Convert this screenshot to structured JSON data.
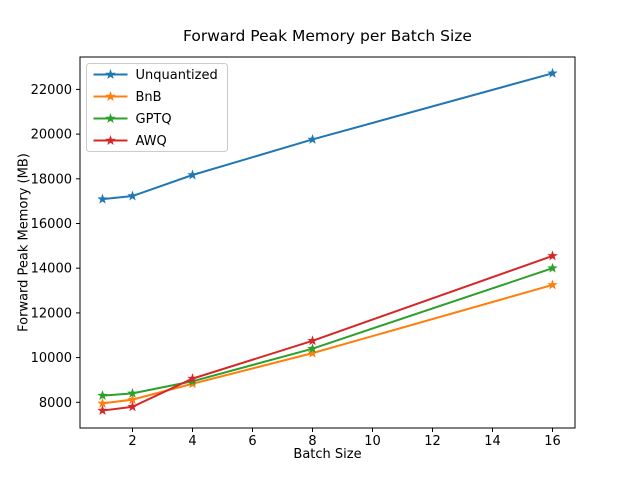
{
  "figure": {
    "background": "#ffffff",
    "spine_color": "#000000",
    "legend_border_color": "#cccccc",
    "legend_background": "#ffffff"
  },
  "chart_data": {
    "type": "line",
    "title": "Forward Peak Memory per Batch Size",
    "xlabel": "Batch Size",
    "ylabel": "Forward Peak Memory (MB)",
    "x": [
      1,
      2,
      4,
      8,
      16
    ],
    "series": [
      {
        "name": "Unquantized",
        "color": "#1f77b4",
        "marker": "star",
        "values": [
          17090,
          17230,
          18170,
          19760,
          22720
        ]
      },
      {
        "name": "BnB",
        "color": "#ff7f0e",
        "marker": "star",
        "values": [
          7950,
          8120,
          8830,
          10200,
          13250
        ]
      },
      {
        "name": "GPTQ",
        "color": "#2ca02c",
        "marker": "star",
        "values": [
          8300,
          8400,
          8940,
          10400,
          14000
        ]
      },
      {
        "name": "AWQ",
        "color": "#d62728",
        "marker": "star",
        "values": [
          7630,
          7800,
          9060,
          10750,
          14550
        ]
      }
    ],
    "xlim": [
      0.25,
      16.75
    ],
    "ylim": [
      6850,
      23450
    ],
    "xticks": [
      2,
      4,
      6,
      8,
      10,
      12,
      14,
      16
    ],
    "yticks": [
      8000,
      10000,
      12000,
      14000,
      16000,
      18000,
      20000,
      22000
    ],
    "grid": false,
    "legend_position": "upper left"
  }
}
